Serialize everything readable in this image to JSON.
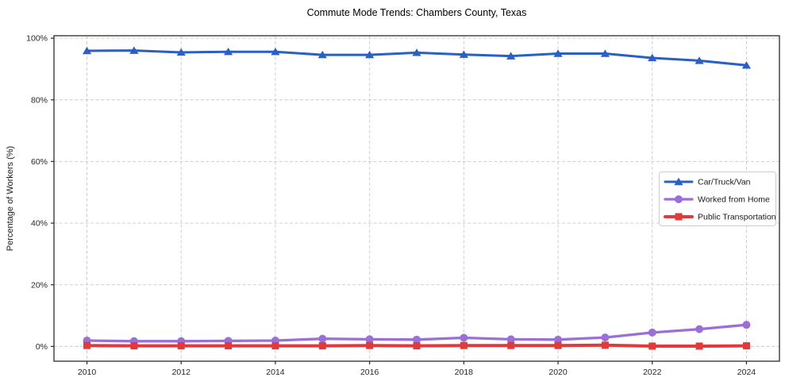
{
  "chart_data": {
    "type": "line",
    "title": "Commute Mode Trends: Chambers County, Texas",
    "xlabel": "",
    "ylabel": "Percentage of Workers (%)",
    "x": [
      2010,
      2011,
      2012,
      2013,
      2014,
      2015,
      2016,
      2017,
      2018,
      2019,
      2020,
      2021,
      2022,
      2023,
      2024
    ],
    "x_ticks": [
      2010,
      2012,
      2014,
      2016,
      2018,
      2020,
      2022,
      2024
    ],
    "y_ticks": [
      0,
      20,
      40,
      60,
      80,
      100
    ],
    "y_tick_labels": [
      "0%",
      "20%",
      "40%",
      "60%",
      "80%",
      "100%"
    ],
    "xlim": [
      2009.3,
      2024.7
    ],
    "ylim": [
      -4.8,
      100.8
    ],
    "grid": true,
    "grid_style": "dashed",
    "legend_position": "center right",
    "series": [
      {
        "name": "Car/Truck/Van",
        "marker": "triangle",
        "color": "#2a5fc4",
        "values": [
          95.9,
          96.0,
          95.4,
          95.6,
          95.6,
          94.6,
          94.6,
          95.3,
          94.7,
          94.2,
          95.0,
          95.0,
          93.6,
          92.7,
          91.2
        ]
      },
      {
        "name": "Worked from Home",
        "marker": "circle",
        "color": "#9a6fd6",
        "values": [
          1.9,
          1.7,
          1.7,
          1.8,
          1.9,
          2.5,
          2.3,
          2.2,
          2.8,
          2.3,
          2.2,
          2.9,
          4.5,
          5.6,
          7.0
        ]
      },
      {
        "name": "Public Transportation",
        "marker": "square",
        "color": "#e23a3a",
        "values": [
          0.3,
          0.2,
          0.2,
          0.2,
          0.2,
          0.2,
          0.3,
          0.2,
          0.3,
          0.3,
          0.3,
          0.4,
          0.1,
          0.1,
          0.2
        ]
      }
    ]
  }
}
